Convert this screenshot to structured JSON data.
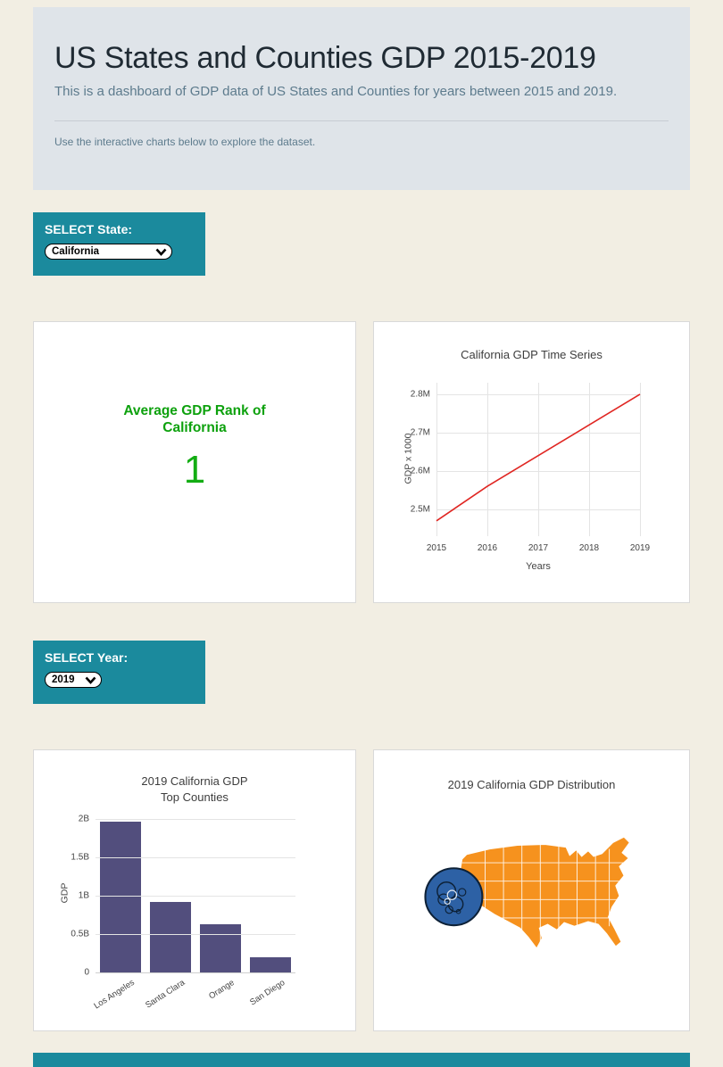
{
  "theme": {
    "page_bg": "#f2eee3",
    "header_bg": "#dfe4e9",
    "accent_teal": "#1b8a9d",
    "rank_green": "#0da10d",
    "line_red": "#e02622",
    "bar_purple": "#524e7d",
    "map_orange": "#f6921e",
    "bubble_blue": "#2d61a5"
  },
  "header": {
    "title": "US States and Counties GDP 2015-2019",
    "subtitle": "This is a dashboard of GDP data of US States and Counties for years between 2015 and 2019.",
    "hint": "Use the interactive charts below to explore the dataset."
  },
  "state_selector": {
    "label": "SELECT State:",
    "value": "California"
  },
  "year_selector": {
    "label": "SELECT Year:",
    "value": "2019"
  },
  "rank_card": {
    "title_lines": [
      "Average GDP Rank of",
      "California"
    ],
    "value": "1"
  },
  "chart_data": [
    {
      "type": "line",
      "title": "California GDP Time Series",
      "xlabel": "Years",
      "ylabel": "GDP x 1000",
      "x": [
        2015,
        2016,
        2017,
        2018,
        2019
      ],
      "y": [
        2.47,
        2.56,
        2.64,
        2.72,
        2.8
      ],
      "y_units": "millions (GDP x 1000)",
      "ylim": [
        2.43,
        2.83
      ],
      "ytick_values": [
        2.5,
        2.6,
        2.7,
        2.8
      ],
      "ytick_labels": [
        "2.5M",
        "2.6M",
        "2.7M",
        "2.8M"
      ],
      "line_color": "#e02622",
      "grid": true
    },
    {
      "type": "bar",
      "title": "2019 California GDP Top Counties",
      "title_lines": [
        "2019 California GDP",
        "Top Counties"
      ],
      "ylabel": "GDP",
      "categories": [
        "Los Angeles",
        "Santa Clara",
        "Orange",
        "San Diego"
      ],
      "values": [
        1.97,
        0.92,
        0.63,
        0.2
      ],
      "values_units": "billions",
      "ylim": [
        0,
        2.06
      ],
      "ytick_values": [
        0,
        0.5,
        1,
        1.5,
        2
      ],
      "ytick_labels": [
        "0",
        "0.5B",
        "1B",
        "1.5B",
        "2B"
      ],
      "bar_color": "#524e7d",
      "grid": true
    },
    {
      "type": "map",
      "title": "2019 California GDP Distribution",
      "region": "United States",
      "map_color": "#f6921e",
      "bubble_color": "#2d61a5"
    }
  ]
}
